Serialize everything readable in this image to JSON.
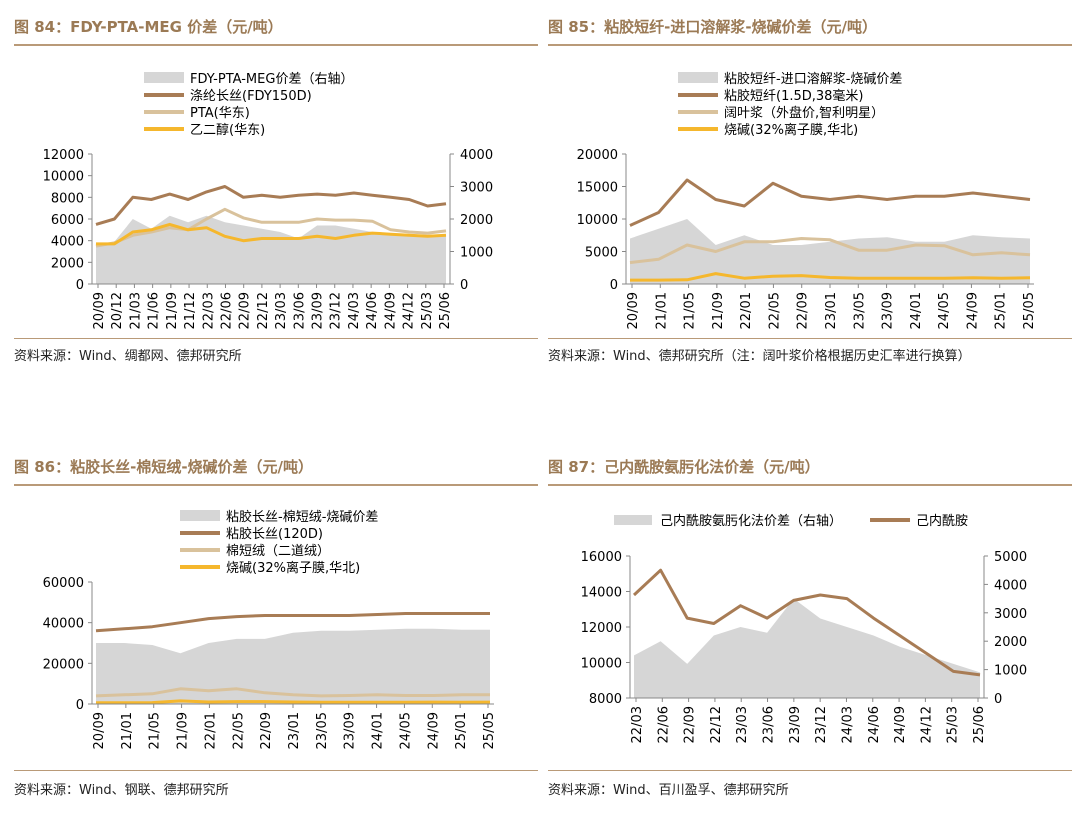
{
  "colors": {
    "title": "#9b7a55",
    "rule": "#b99a78",
    "brown": "#a87c55",
    "lightTan": "#d9c29c",
    "gold": "#f5b72d",
    "gray": "#d6d6d6"
  },
  "panels": [
    {
      "title": "图 84：FDY-PTA-MEG 价差（元/吨）",
      "source": "资料来源：Wind、绸都网、德邦研究所",
      "chart_data": {
        "type": "area+line",
        "legend": [
          "FDY-PTA-MEG价差（右轴）",
          "涤纶长丝(FDY150D)",
          "PTA(华东)",
          "乙二醇(华东)"
        ],
        "x_ticks": [
          "20/09",
          "20/12",
          "21/03",
          "21/06",
          "21/09",
          "21/12",
          "22/03",
          "22/06",
          "22/09",
          "22/12",
          "23/03",
          "23/06",
          "23/09",
          "23/12",
          "24/03",
          "24/06",
          "24/09",
          "24/12",
          "25/03",
          "25/06"
        ],
        "y_left": {
          "min": 0,
          "max": 12000,
          "ticks": [
            "12000",
            "10000",
            "8000",
            "6000",
            "4000",
            "2000",
            "0"
          ]
        },
        "y_right": {
          "min": 0,
          "max": 4000,
          "ticks": [
            "4000",
            "3000",
            "2000",
            "1000",
            "0"
          ]
        },
        "series": [
          {
            "name": "FDY-PTA-MEG价差（右轴）",
            "kind": "area",
            "axis": "right",
            "values": [
              1200,
              1300,
              2000,
              1700,
              2100,
              1900,
              2100,
              1900,
              1800,
              1700,
              1600,
              1400,
              1800,
              1800,
              1700,
              1600,
              1500,
              1500,
              1500,
              1500
            ]
          },
          {
            "name": "涤纶长丝(FDY150D)",
            "kind": "line",
            "axis": "left",
            "values": [
              5500,
              6000,
              8000,
              7800,
              8300,
              7800,
              8500,
              9000,
              8000,
              8200,
              8000,
              8200,
              8300,
              8200,
              8400,
              8200,
              8000,
              7800,
              7200,
              7400
            ]
          },
          {
            "name": "PTA(华东)",
            "kind": "line",
            "axis": "left",
            "values": [
              3500,
              3800,
              4500,
              4800,
              5200,
              5000,
              6000,
              6900,
              6100,
              5700,
              5700,
              5700,
              6000,
              5900,
              5900,
              5800,
              5000,
              4800,
              4700,
              4900
            ]
          },
          {
            "name": "乙二醇(华东)",
            "kind": "line",
            "axis": "left",
            "values": [
              3700,
              3700,
              4800,
              5000,
              5500,
              5000,
              5200,
              4400,
              4000,
              4200,
              4200,
              4200,
              4400,
              4200,
              4500,
              4700,
              4600,
              4500,
              4400,
              4500
            ]
          }
        ]
      }
    },
    {
      "title": "图 85：粘胶短纤-进口溶解浆-烧碱价差（元/吨）",
      "source": "资料来源：Wind、德邦研究所（注：阔叶浆价格根据历史汇率进行换算）",
      "chart_data": {
        "type": "area+line",
        "legend": [
          "粘胶短纤-进口溶解浆-烧碱价差",
          "粘胶短纤(1.5D,38毫米)",
          "阔叶浆（外盘价,智利明星）",
          "烧碱(32%离子膜,华北)"
        ],
        "x_ticks": [
          "20/09",
          "21/01",
          "21/05",
          "21/09",
          "22/01",
          "22/05",
          "22/09",
          "23/01",
          "23/05",
          "23/09",
          "24/01",
          "24/05",
          "24/09",
          "25/01",
          "25/05"
        ],
        "y_left": {
          "min": 0,
          "max": 20000,
          "ticks": [
            "20000",
            "15000",
            "10000",
            "5000",
            "0"
          ]
        },
        "series": [
          {
            "name": "粘胶短纤-进口溶解浆-烧碱价差",
            "kind": "area",
            "axis": "left",
            "values": [
              7000,
              8500,
              10000,
              6000,
              7500,
              6000,
              6000,
              6500,
              7000,
              7200,
              6500,
              6500,
              7500,
              7200,
              7000
            ]
          },
          {
            "name": "粘胶短纤(1.5D,38毫米)",
            "kind": "line",
            "axis": "left",
            "values": [
              9000,
              11000,
              16000,
              13000,
              12000,
              15500,
              13500,
              13000,
              13500,
              13000,
              13500,
              13500,
              14000,
              13500,
              13000
            ]
          },
          {
            "name": "阔叶浆（外盘价,智利明星）",
            "kind": "line",
            "axis": "left",
            "values": [
              3300,
              3800,
              6000,
              5000,
              6500,
              6500,
              7000,
              6800,
              5200,
              5200,
              6000,
              5900,
              4500,
              4800,
              4500
            ]
          },
          {
            "name": "烧碱(32%离子膜,华北)",
            "kind": "line",
            "axis": "left",
            "values": [
              600,
              600,
              650,
              1600,
              900,
              1200,
              1300,
              1000,
              900,
              900,
              900,
              900,
              950,
              900,
              950
            ]
          }
        ]
      }
    },
    {
      "title": "图 86：粘胶长丝-棉短绒-烧碱价差（元/吨）",
      "source": "资料来源：Wind、钢联、德邦研究所",
      "chart_data": {
        "type": "area+line",
        "legend": [
          "粘胶长丝-棉短绒-烧碱价差",
          "粘胶长丝(120D)",
          "棉短绒（二道绒）",
          "烧碱(32%离子膜,华北)"
        ],
        "x_ticks": [
          "20/09",
          "21/01",
          "21/05",
          "21/09",
          "22/01",
          "22/05",
          "22/09",
          "23/01",
          "23/05",
          "23/09",
          "24/01",
          "24/05",
          "24/09",
          "25/01",
          "25/05"
        ],
        "y_left": {
          "min": 0,
          "max": 60000,
          "ticks": [
            "60000",
            "40000",
            "20000",
            "0"
          ]
        },
        "series": [
          {
            "name": "粘胶长丝-棉短绒-烧碱价差",
            "kind": "area",
            "axis": "left",
            "values": [
              30000,
              30000,
              29000,
              25000,
              30000,
              32000,
              32000,
              35000,
              36000,
              36000,
              36500,
              37000,
              37000,
              36500,
              36500
            ]
          },
          {
            "name": "粘胶长丝(120D)",
            "kind": "line",
            "axis": "left",
            "values": [
              36000,
              37000,
              38000,
              40000,
              42000,
              43000,
              43500,
              43500,
              43500,
              43500,
              44000,
              44500,
              44500,
              44500,
              44500
            ]
          },
          {
            "name": "棉短绒（二道绒）",
            "kind": "line",
            "axis": "left",
            "values": [
              4000,
              4500,
              5000,
              7500,
              6500,
              7500,
              5500,
              4500,
              4000,
              4200,
              4500,
              4200,
              4200,
              4500,
              4500
            ]
          },
          {
            "name": "烧碱(32%离子膜,华北)",
            "kind": "line",
            "axis": "left",
            "values": [
              600,
              600,
              700,
              1500,
              1000,
              1200,
              1200,
              1000,
              900,
              900,
              900,
              900,
              950,
              900,
              950
            ]
          }
        ]
      }
    },
    {
      "title": "图 87：己内酰胺氨肟化法价差（元/吨）",
      "source": "资料来源：Wind、百川盈孚、德邦研究所",
      "chart_data": {
        "type": "area+line",
        "legend": [
          "己内酰胺氨肟化法价差（右轴）",
          "己内酰胺"
        ],
        "x_ticks": [
          "22/03",
          "22/06",
          "22/09",
          "22/12",
          "23/03",
          "23/06",
          "23/09",
          "23/12",
          "24/03",
          "24/06",
          "24/09",
          "24/12",
          "25/03",
          "25/06"
        ],
        "y_left": {
          "min": 8000,
          "max": 16000,
          "ticks": [
            "16000",
            "14000",
            "12000",
            "10000",
            "8000"
          ]
        },
        "y_right": {
          "min": 0,
          "max": 5000,
          "ticks": [
            "5000",
            "4000",
            "3000",
            "2000",
            "1000",
            "0"
          ]
        },
        "series": [
          {
            "name": "己内酰胺氨肟化法价差（右轴）",
            "kind": "area",
            "axis": "right",
            "values": [
              1500,
              2000,
              1200,
              2200,
              2500,
              2300,
              3500,
              2800,
              2500,
              2200,
              1800,
              1500,
              1200,
              900
            ]
          },
          {
            "name": "己内酰胺",
            "kind": "line",
            "axis": "left",
            "values": [
              13800,
              15200,
              12500,
              12200,
              13200,
              12500,
              13500,
              13800,
              13600,
              12500,
              11500,
              10500,
              9500,
              9300
            ]
          }
        ]
      }
    }
  ]
}
